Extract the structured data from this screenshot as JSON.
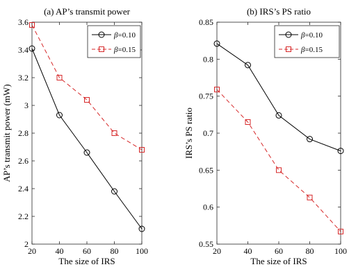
{
  "chart_data": [
    {
      "type": "line",
      "title": "(a) AP’s transmit power",
      "xlabel": "The size of IRS",
      "ylabel": "AP’s transmit power (mW)",
      "x": [
        20,
        40,
        60,
        80,
        100
      ],
      "xlim": [
        20,
        100
      ],
      "ylim": [
        2,
        3.6
      ],
      "xticks": [
        20,
        40,
        60,
        80,
        100
      ],
      "yticks": [
        2,
        2.2,
        2.4,
        2.6,
        2.8,
        3,
        3.2,
        3.4,
        3.6
      ],
      "xtick_labels": [
        "20",
        "40",
        "60",
        "80",
        "100"
      ],
      "ytick_labels": [
        "2",
        "2.2",
        "2.4",
        "2.6",
        "2.8",
        "3",
        "3.2",
        "3.4",
        "3.6"
      ],
      "grid": false,
      "legend_position": "top-right",
      "series": [
        {
          "name": "β=0.10",
          "legend_prefix": "β",
          "legend_value": "=0.10",
          "color": "#000000",
          "marker": "circle",
          "dash": "solid",
          "values": [
            3.41,
            2.93,
            2.66,
            2.38,
            2.11
          ]
        },
        {
          "name": "β=0.15",
          "legend_prefix": "β",
          "legend_value": "=0.15",
          "color": "#d62728",
          "marker": "square",
          "dash": "dashed",
          "values": [
            3.58,
            3.2,
            3.04,
            2.8,
            2.68
          ]
        }
      ]
    },
    {
      "type": "line",
      "title": "(b) IRS’s PS ratio",
      "xlabel": "The size of IRS",
      "ylabel": "IRS’s PS ratio",
      "x": [
        20,
        40,
        60,
        80,
        100
      ],
      "xlim": [
        20,
        100
      ],
      "ylim": [
        0.55,
        0.85
      ],
      "xticks": [
        20,
        40,
        60,
        80,
        100
      ],
      "yticks": [
        0.55,
        0.6,
        0.65,
        0.7,
        0.75,
        0.8,
        0.85
      ],
      "xtick_labels": [
        "20",
        "40",
        "60",
        "80",
        "100"
      ],
      "ytick_labels": [
        "0.55",
        "0.6",
        "0.65",
        "0.7",
        "0.75",
        "0.8",
        "0.85"
      ],
      "grid": false,
      "legend_position": "top-right",
      "series": [
        {
          "name": "β=0.10",
          "legend_prefix": "β",
          "legend_value": "=0.10",
          "color": "#000000",
          "marker": "circle",
          "dash": "solid",
          "values": [
            0.821,
            0.792,
            0.724,
            0.692,
            0.676
          ]
        },
        {
          "name": "β=0.15",
          "legend_prefix": "β",
          "legend_value": "=0.15",
          "color": "#d62728",
          "marker": "square",
          "dash": "dashed",
          "values": [
            0.759,
            0.715,
            0.65,
            0.613,
            0.567
          ]
        }
      ]
    }
  ]
}
